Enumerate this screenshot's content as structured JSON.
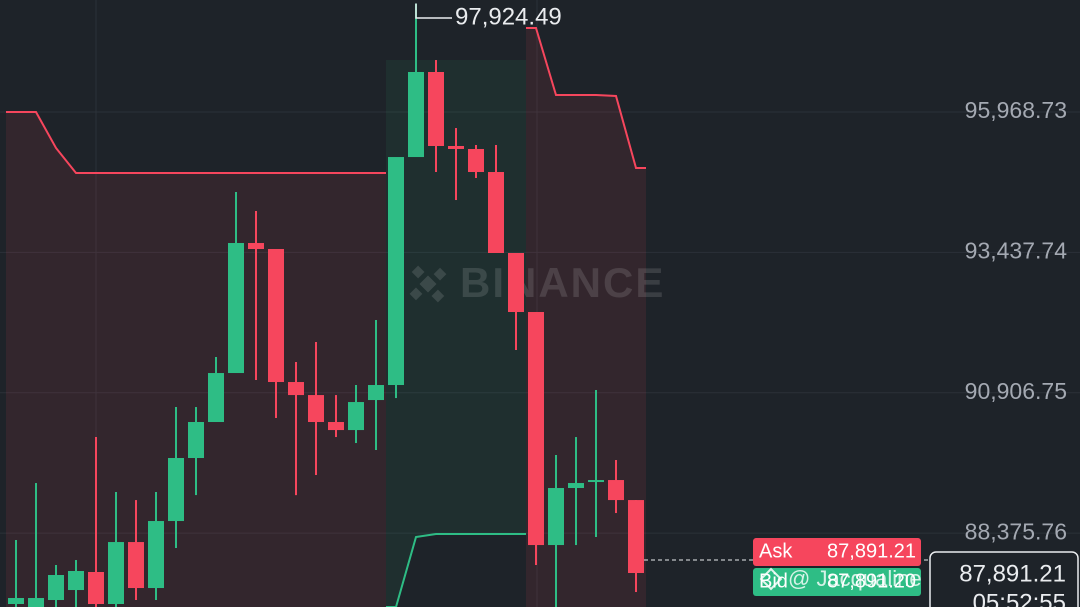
{
  "chart_data": {
    "type": "candlestick",
    "watermark": "BINANCE",
    "ylim": [
      87045,
      97988
    ],
    "yticks": [
      {
        "value": 95968.73,
        "label": "95,968.73"
      },
      {
        "value": 93437.74,
        "label": "93,437.74"
      },
      {
        "value": 90906.75,
        "label": "90,906.75"
      },
      {
        "value": 88375.76,
        "label": "88,375.76"
      }
    ],
    "grid": true,
    "up_color": "#2ebd85",
    "down_color": "#f6465d",
    "candles": {
      "open": [
        87099,
        87045,
        87171,
        87351,
        87676,
        87099,
        88216,
        87387,
        88595,
        89731,
        90380,
        91263,
        93607,
        93499,
        91101,
        90866,
        90380,
        90235,
        90776,
        91047,
        95157,
        96690,
        95356,
        95302,
        94887,
        93427,
        92363,
        88162,
        89190,
        89298,
        89334,
        88973
      ],
      "high": [
        88253,
        89280,
        87802,
        87892,
        90109,
        89118,
        88973,
        89118,
        90650,
        90650,
        91552,
        94526,
        94184,
        93499,
        91462,
        91822,
        90866,
        91047,
        92219,
        91047,
        97924.49,
        96906,
        95680,
        95374,
        95374,
        93427,
        92363,
        89785,
        90109,
        90957,
        89695,
        88973
      ],
      "low": [
        87045,
        87045,
        87045,
        87045,
        87045,
        87045,
        87171,
        87171,
        88108,
        89063,
        90380,
        91263,
        91137,
        90452,
        89063,
        89424,
        90109,
        90001,
        89875,
        90812,
        95157,
        94887,
        94382,
        94779,
        93427,
        91678,
        87802,
        87045,
        88162,
        88307,
        88739,
        87315
      ],
      "close": [
        87207,
        87207,
        87622,
        87694,
        87099,
        88216,
        87387,
        88595,
        89731,
        90380,
        91263,
        93607,
        93499,
        91101,
        90866,
        90380,
        90235,
        90740,
        91047,
        95157,
        96690,
        95356,
        95302,
        94887,
        93427,
        92363,
        88162,
        89190,
        89280,
        89334,
        88973,
        87658
      ]
    },
    "bands": [
      {
        "color": "#f6465d",
        "values": [
          95969,
          95969,
          95320,
          94869,
          94869,
          94869,
          94869,
          94869,
          94869,
          94869,
          94869,
          94869,
          94869,
          94869,
          94869,
          94869,
          94869,
          94869,
          94869,
          null,
          null,
          null,
          null,
          null,
          null,
          null,
          97483,
          96275,
          96275,
          96275,
          96257,
          94959
        ]
      },
      {
        "color": "#2ebd85",
        "values": [
          null,
          null,
          null,
          null,
          null,
          null,
          null,
          null,
          null,
          null,
          null,
          null,
          null,
          null,
          null,
          null,
          null,
          null,
          null,
          87045,
          88307,
          88361,
          88361,
          88361,
          88361,
          88361,
          null,
          null,
          null,
          null,
          null,
          null
        ]
      }
    ],
    "max_label": {
      "value": 97924.49,
      "label": "97,924.49"
    },
    "ask": {
      "label": "Ask",
      "value": 87891.21,
      "value_label": "87,891.21"
    },
    "bid": {
      "label": "Bid",
      "value": 87891.2,
      "value_label": "87,891.20"
    },
    "last_price": {
      "value": 87891.21,
      "label": "87,891.21"
    },
    "countdown": "05:52:55",
    "author": "@ Jacqualine Maccaulley…"
  }
}
